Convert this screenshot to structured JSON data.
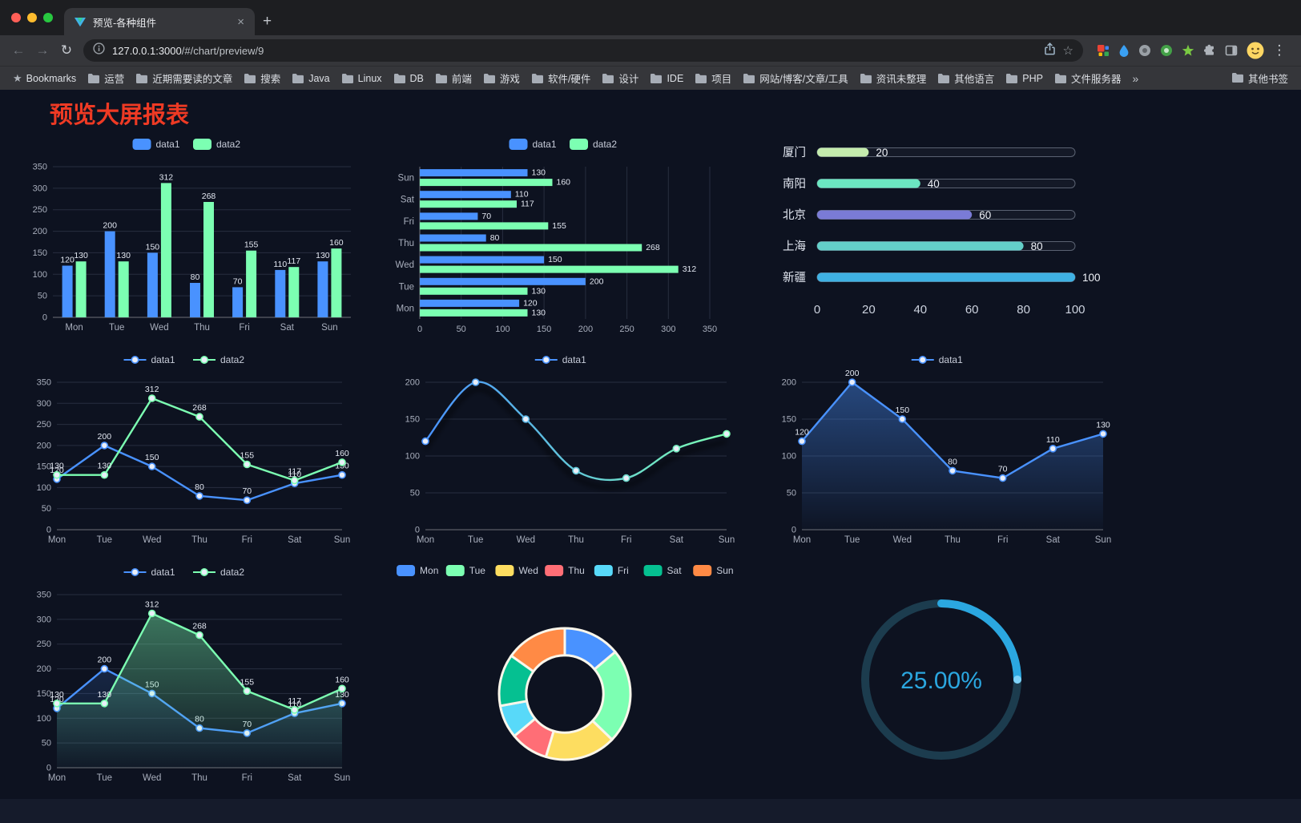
{
  "browser": {
    "tab_title": "预览-各种组件",
    "url_host": "127.0.0.1:3000",
    "url_path": "/#/chart/preview/9",
    "icons": {
      "back": "←",
      "forward": "→",
      "reload": "↻",
      "close_tab": "×",
      "new_tab": "+",
      "menu": "⋮",
      "star_outline": "☆",
      "bookmarks_star": "★",
      "overflow_chevron": "»"
    },
    "icon_names": [
      "site-info-icon",
      "share-icon",
      "bookmark-star-icon",
      "colorful-grid-extension-icon",
      "blue-drop-extension-icon",
      "grey-circle-extension-icon",
      "green-circle-extension-icon",
      "green-star-extension-icon",
      "extensions-puzzle-icon",
      "side-panel-icon",
      "profile-avatar",
      "kebab-menu-icon",
      "folder-icon"
    ],
    "bookmarks_label": "Bookmarks",
    "bookmarks": [
      "运营",
      "近期需要读的文章",
      "搜索",
      "Java",
      "Linux",
      "DB",
      "前端",
      "游戏",
      "软件/硬件",
      "设计",
      "IDE",
      "项目",
      "网站/博客/文章/工具",
      "资讯未整理",
      "其他语言",
      "PHP",
      "文件服务器"
    ],
    "other_bookmarks": "其他书签"
  },
  "page": {
    "title": "预览大屏报表",
    "title_color": "#ee3a24",
    "background": "#0d1220",
    "accent_blue": "#4992ff",
    "accent_green": "#7cffb2"
  },
  "chart_data": [
    {
      "type": "bar",
      "legend": [
        "data1",
        "data2"
      ],
      "categories": [
        "Mon",
        "Tue",
        "Wed",
        "Thu",
        "Fri",
        "Sat",
        "Sun"
      ],
      "series": [
        {
          "name": "data1",
          "color": "#4992ff",
          "values": [
            120,
            200,
            150,
            80,
            70,
            110,
            130
          ]
        },
        {
          "name": "data2",
          "color": "#7cffb2",
          "values": [
            130,
            130,
            312,
            268,
            155,
            117,
            160
          ]
        }
      ],
      "ylim": [
        0,
        350
      ],
      "ystep": 50,
      "show_labels": true
    },
    {
      "type": "bar-horizontal",
      "legend": [
        "data1",
        "data2"
      ],
      "categories": [
        "Mon",
        "Tue",
        "Wed",
        "Thu",
        "Fri",
        "Sat",
        "Sun"
      ],
      "category_order_display": [
        "Sun",
        "Sat",
        "Fri",
        "Thu",
        "Wed",
        "Tue",
        "Mon"
      ],
      "series": [
        {
          "name": "data1",
          "color": "#4992ff",
          "values": [
            120,
            200,
            150,
            80,
            70,
            110,
            130
          ]
        },
        {
          "name": "data2",
          "color": "#7cffb2",
          "values": [
            130,
            130,
            312,
            268,
            155,
            117,
            160
          ]
        }
      ],
      "xlim": [
        0,
        350
      ],
      "xstep": 50,
      "show_labels": true
    },
    {
      "type": "progress",
      "rows": [
        {
          "label": "厦门",
          "value": 20,
          "color": "#c4ebad"
        },
        {
          "label": "南阳",
          "value": 40,
          "color": "#6be6c1"
        },
        {
          "label": "北京",
          "value": 60,
          "color": "#7a7bd6"
        },
        {
          "label": "上海",
          "value": 80,
          "color": "#63cfc9"
        },
        {
          "label": "新疆",
          "value": 100,
          "color": "#3fb1e3"
        }
      ],
      "max": 100,
      "xticks": [
        0,
        20,
        40,
        60,
        80,
        100
      ]
    },
    {
      "type": "line",
      "legend": [
        "data1",
        "data2"
      ],
      "categories": [
        "Mon",
        "Tue",
        "Wed",
        "Thu",
        "Fri",
        "Sat",
        "Sun"
      ],
      "series": [
        {
          "name": "data1",
          "color": "#4992ff",
          "values": [
            120,
            200,
            150,
            80,
            70,
            110,
            130
          ]
        },
        {
          "name": "data2",
          "color": "#7cffb2",
          "values": [
            130,
            130,
            312,
            268,
            155,
            117,
            160
          ]
        }
      ],
      "ylim": [
        0,
        350
      ],
      "ystep": 50,
      "show_labels": true
    },
    {
      "type": "line",
      "legend": [
        "data1"
      ],
      "categories": [
        "Mon",
        "Tue",
        "Wed",
        "Thu",
        "Fri",
        "Sat",
        "Sun"
      ],
      "series": [
        {
          "name": "data1",
          "color_start": "#4992ff",
          "color_end": "#7cffb2",
          "smooth": true,
          "shadow": true,
          "values": [
            120,
            200,
            150,
            80,
            70,
            110,
            130
          ]
        }
      ],
      "ylim": [
        0,
        200
      ],
      "ystep": 50,
      "show_labels": false
    },
    {
      "type": "line",
      "legend": [
        "data1"
      ],
      "categories": [
        "Mon",
        "Tue",
        "Wed",
        "Thu",
        "Fri",
        "Sat",
        "Sun"
      ],
      "series": [
        {
          "name": "data1",
          "color": "#4992ff",
          "area": true,
          "area_opacity": 0.42,
          "values": [
            120,
            200,
            150,
            80,
            70,
            110,
            130
          ]
        }
      ],
      "ylim": [
        0,
        200
      ],
      "ystep": 50,
      "show_labels": true
    },
    {
      "type": "line",
      "legend": [
        "data1",
        "data2"
      ],
      "categories": [
        "Mon",
        "Tue",
        "Wed",
        "Thu",
        "Fri",
        "Sat",
        "Sun"
      ],
      "series": [
        {
          "name": "data1",
          "color": "#4992ff",
          "area": true,
          "area_opacity": 0.16,
          "values": [
            120,
            200,
            150,
            80,
            70,
            110,
            130
          ]
        },
        {
          "name": "data2",
          "color": "#7cffb2",
          "area": true,
          "area_opacity": 0.42,
          "values": [
            130,
            130,
            312,
            268,
            155,
            117,
            160
          ]
        }
      ],
      "ylim": [
        0,
        350
      ],
      "ystep": 50,
      "show_labels": true
    },
    {
      "type": "pie",
      "inner_radius_ratio": 0.6,
      "legend": [
        "Mon",
        "Tue",
        "Wed",
        "Thu",
        "Fri",
        "Sat",
        "Sun"
      ],
      "slices": [
        {
          "name": "Mon",
          "value": 120,
          "color": "#4992ff"
        },
        {
          "name": "Tue",
          "value": 200,
          "color": "#7cffb2"
        },
        {
          "name": "Wed",
          "value": 150,
          "color": "#fddd60"
        },
        {
          "name": "Thu",
          "value": 80,
          "color": "#ff6e76"
        },
        {
          "name": "Fri",
          "value": 70,
          "color": "#58d9f9"
        },
        {
          "name": "Sat",
          "value": 110,
          "color": "#05c091"
        },
        {
          "name": "Sun",
          "value": 130,
          "color": "#ff8a45"
        }
      ],
      "border_color": "#faf6ea"
    },
    {
      "type": "gauge",
      "value": 25,
      "label": "25.00%",
      "color": "#2ba7e0",
      "track_color": "#1c3c4e"
    }
  ]
}
